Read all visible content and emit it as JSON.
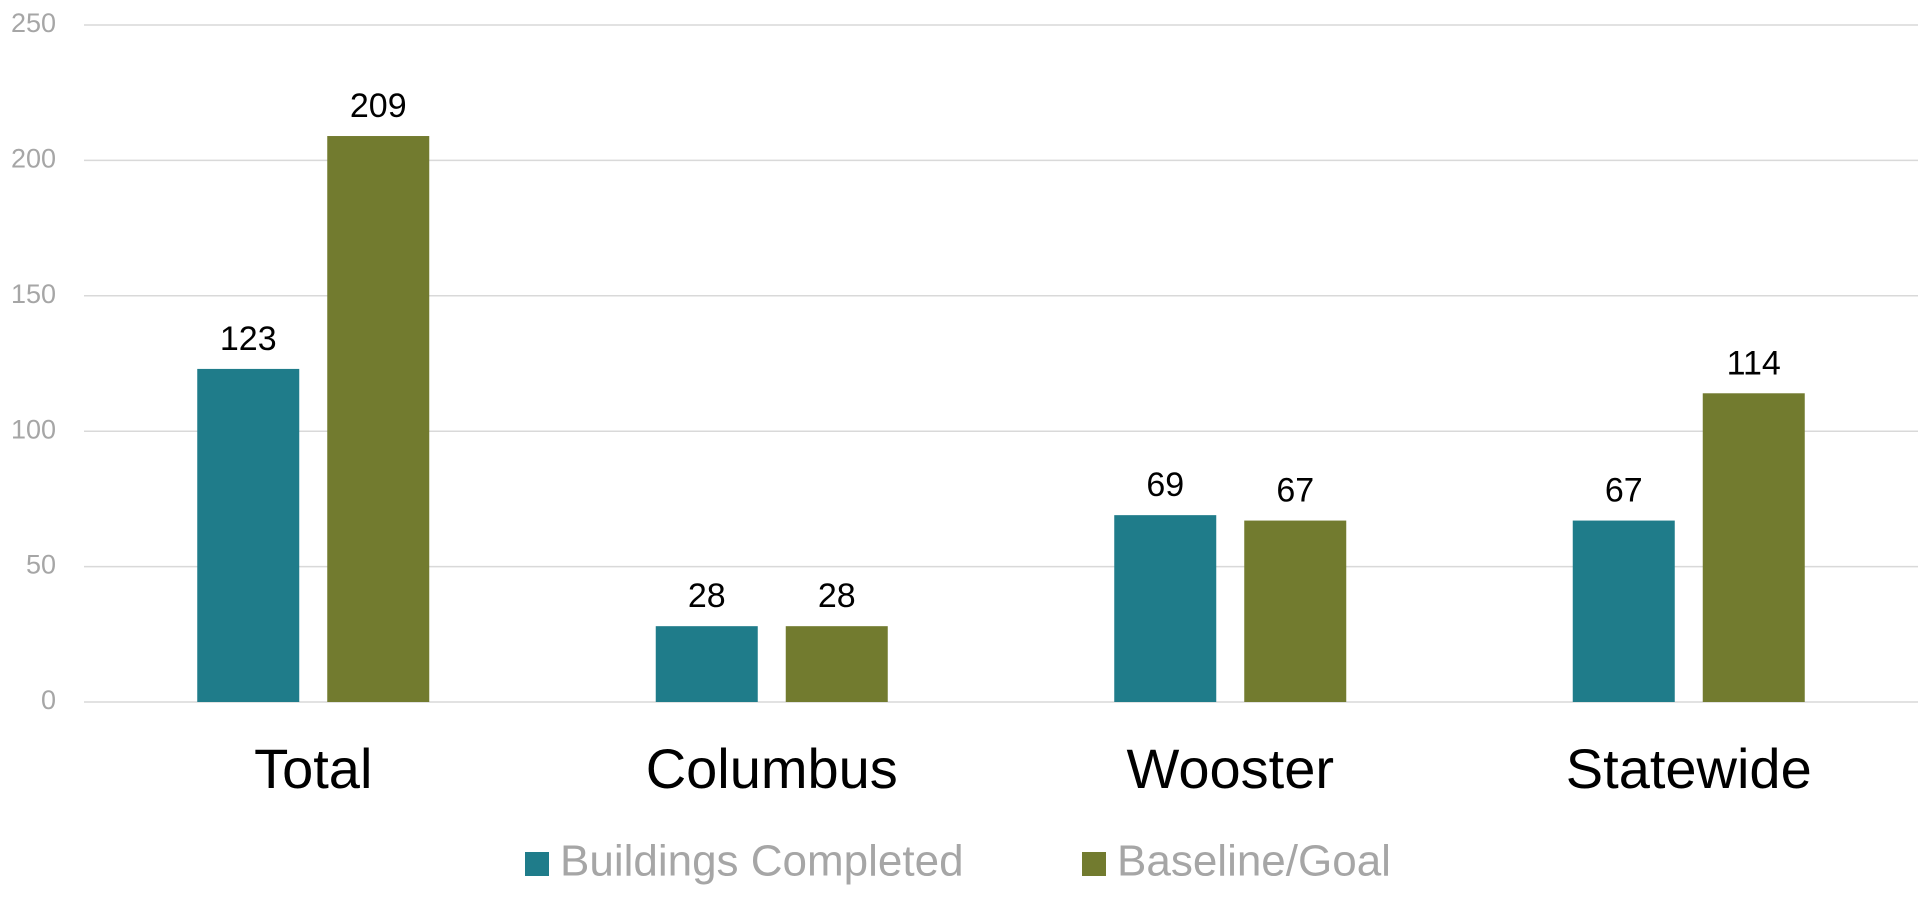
{
  "chart_data": {
    "type": "bar",
    "categories": [
      "Total",
      "Columbus",
      "Wooster",
      "Statewide"
    ],
    "series": [
      {
        "name": "Buildings Completed",
        "color": "#1f7c8a",
        "values": [
          123,
          28,
          69,
          67
        ]
      },
      {
        "name": "Baseline/Goal",
        "color": "#727b2f",
        "values": [
          209,
          28,
          67,
          114
        ]
      }
    ],
    "ylim": [
      0,
      250
    ],
    "yticks": [
      0,
      50,
      100,
      150,
      200,
      250
    ],
    "grid": true,
    "legend": "bottom"
  }
}
